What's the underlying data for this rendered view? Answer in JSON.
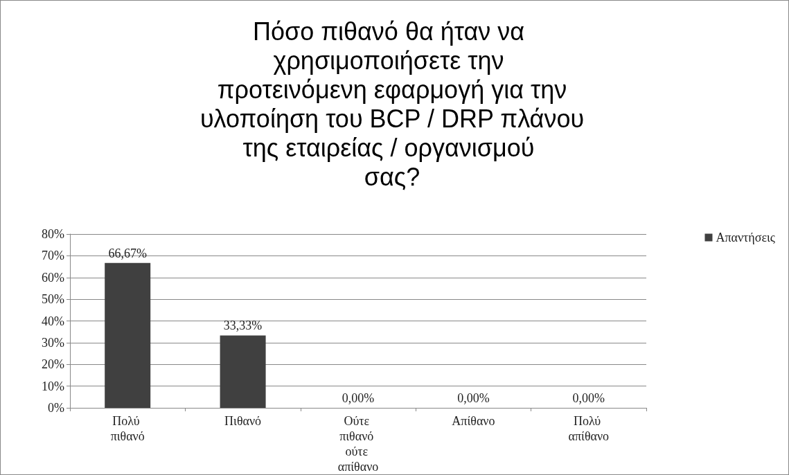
{
  "chart_data": {
    "type": "bar",
    "title": "Πόσο πιθανό θα ήταν να χρησιμοποιήσετε την προτεινόμενη εφαρμογή για την υλοποίηση του BCP / DRP πλάνου της εταιρείας / οργανισμού σας?",
    "categories": [
      "Πολύ πιθανό",
      "Πιθανό",
      "Ούτε πιθανό ούτε απίθανο",
      "Απίθανο",
      "Πολύ απίθανο"
    ],
    "series": [
      {
        "name": "Απαντήσεις",
        "color": "#404040",
        "values": [
          66.67,
          33.33,
          0,
          0,
          0
        ],
        "value_labels": [
          "66,67%",
          "33,33%",
          "0,00%",
          "0,00%",
          "0,00%"
        ]
      }
    ],
    "ylim": [
      0,
      80
    ],
    "yticks": [
      {
        "value": 0,
        "label": "0%"
      },
      {
        "value": 10,
        "label": "10%"
      },
      {
        "value": 20,
        "label": "20%"
      },
      {
        "value": 30,
        "label": "30%"
      },
      {
        "value": 40,
        "label": "40%"
      },
      {
        "value": 50,
        "label": "50%"
      },
      {
        "value": 60,
        "label": "60%"
      },
      {
        "value": 70,
        "label": "70%"
      },
      {
        "value": 80,
        "label": "80%"
      }
    ],
    "grid": "y",
    "legend": "right"
  }
}
